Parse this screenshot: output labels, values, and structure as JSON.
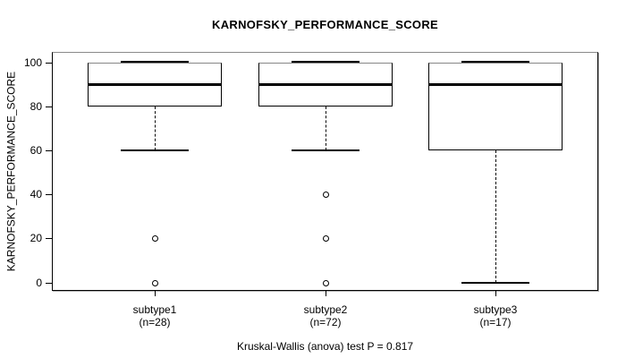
{
  "chart_data": {
    "type": "box",
    "title": "KARNOFSKY_PERFORMANCE_SCORE",
    "ylabel": "KARNOFSKY_PERFORMANCE_SCORE",
    "footer": "Kruskal-Wallis (anova) test P = 0.817",
    "ylim": [
      0,
      100
    ],
    "yticks": [
      0,
      20,
      40,
      60,
      80,
      100
    ],
    "grid": "off",
    "legend": "none",
    "groups": [
      {
        "label": "subtype1",
        "n_label": "(n=28)",
        "q1": 80,
        "median": 90,
        "q3": 100,
        "whisker_low": 60,
        "whisker_high": 100,
        "outliers": [
          20,
          0
        ]
      },
      {
        "label": "subtype2",
        "n_label": "(n=72)",
        "q1": 80,
        "median": 90,
        "q3": 100,
        "whisker_low": 60,
        "whisker_high": 100,
        "outliers": [
          40,
          20,
          0
        ]
      },
      {
        "label": "subtype3",
        "n_label": "(n=17)",
        "q1": 60,
        "median": 90,
        "q3": 100,
        "whisker_low": 0,
        "whisker_high": 100,
        "outliers": []
      }
    ],
    "colors": {
      "line": "#000000",
      "background": "#ffffff",
      "frame_shadow": "#b5b5b5"
    }
  }
}
